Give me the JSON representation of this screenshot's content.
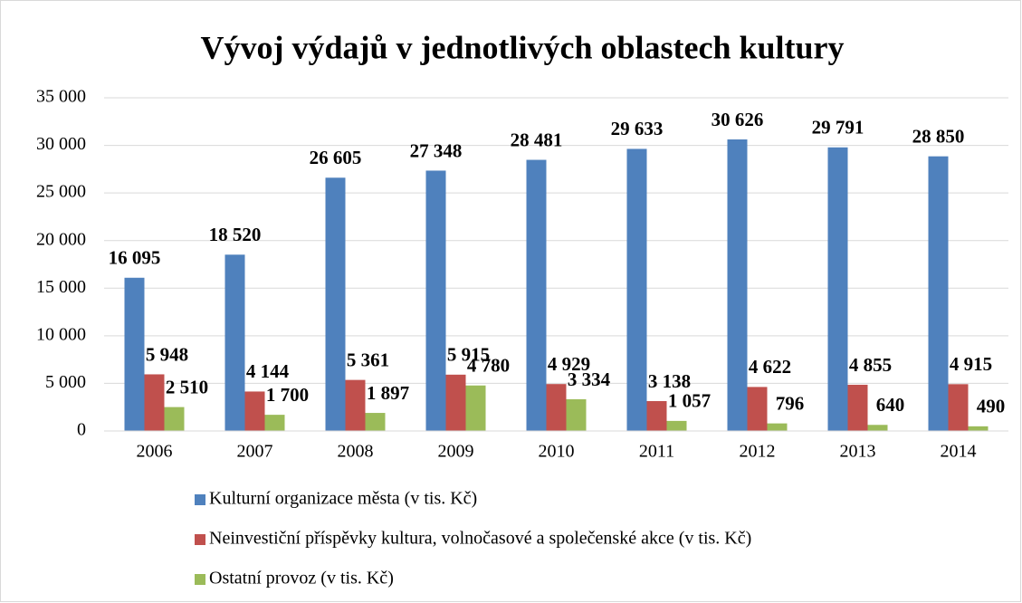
{
  "chart_data": {
    "type": "bar",
    "title": "Vývoj výdajů v jednotlivých oblastech kultury",
    "categories": [
      "2006",
      "2007",
      "2008",
      "2009",
      "2010",
      "2011",
      "2012",
      "2013",
      "2014"
    ],
    "series": [
      {
        "name": "Kulturní organizace města (v tis. Kč)",
        "color": "#4f81bd",
        "values": [
          16095,
          18520,
          26605,
          27348,
          28481,
          29633,
          30626,
          29791,
          28850
        ],
        "value_labels": [
          "16 095",
          "18 520",
          "26 605",
          "27 348",
          "28 481",
          "29 633",
          "30 626",
          "29 791",
          "28 850"
        ]
      },
      {
        "name": "Neinvestiční příspěvky kultura, volnočasové a společenské akce (v tis. Kč)",
        "color": "#c0504d",
        "values": [
          5948,
          4144,
          5361,
          5915,
          4929,
          3138,
          4622,
          4855,
          4915
        ],
        "value_labels": [
          "5 948",
          "4 144",
          "5 361",
          "5 915",
          "4 929",
          "3 138",
          "4 622",
          "4 855",
          "4 915"
        ]
      },
      {
        "name": "Ostatní provoz (v tis. Kč)",
        "color": "#9bbb59",
        "values": [
          2510,
          1700,
          1897,
          4780,
          3334,
          1057,
          796,
          640,
          490
        ],
        "value_labels": [
          "2 510",
          "1 700",
          "1 897",
          "4 780",
          "3 334",
          "1 057",
          "796",
          "640",
          "490"
        ]
      }
    ],
    "ylim": [
      0,
      35000
    ],
    "yticks": [
      0,
      {
        "value": 5000,
        "label": "5 000"
      },
      {
        "value": 10000,
        "label": "10 000"
      },
      {
        "value": 15000,
        "label": "15 000"
      },
      {
        "value": 20000,
        "label": "20 000"
      },
      {
        "value": 25000,
        "label": "25 000"
      },
      {
        "value": 30000,
        "label": "30 000"
      },
      {
        "value": 35000,
        "label": "35 000"
      }
    ],
    "grid": true,
    "legend": "bottom"
  }
}
